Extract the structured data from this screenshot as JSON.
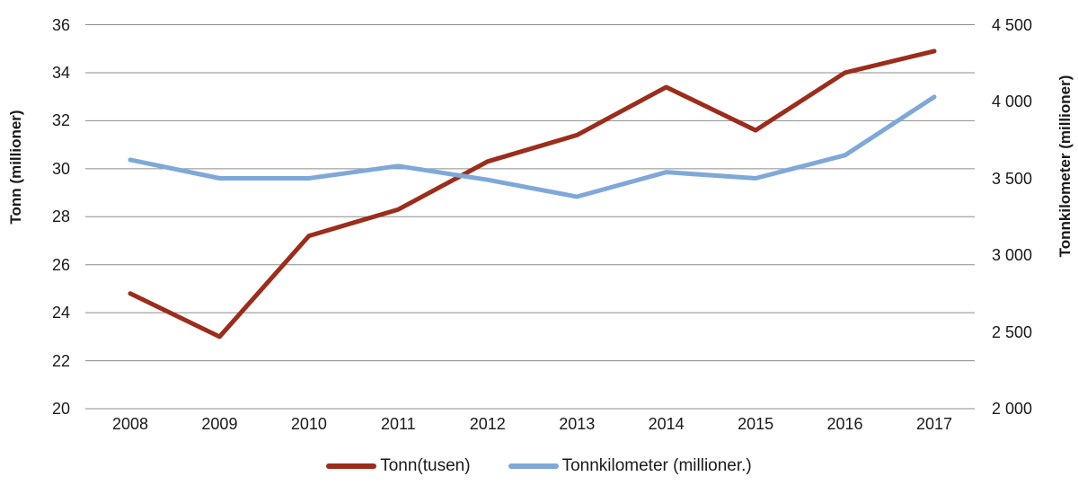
{
  "left_axis": {
    "title": "Tonn (millioner)"
  },
  "right_axis": {
    "title": "Tonnkilometer (millioner)"
  },
  "legend": {
    "items": [
      {
        "label": "Tonn(tusen)",
        "color": "#9B2D1C"
      },
      {
        "label": "Tonnkilometer (millioner.)",
        "color": "#7FA8D8"
      }
    ]
  },
  "colors": {
    "grid": "#8c8c8c",
    "tonn_line": "#9B2D1C",
    "tonnkilometer_line": "#7FA8D8",
    "text": "#1a1a1a",
    "background": "#ffffff"
  },
  "chart_data": {
    "type": "line",
    "categories": [
      "2008",
      "2009",
      "2010",
      "2011",
      "2012",
      "2013",
      "2014",
      "2015",
      "2016",
      "2017"
    ],
    "series": [
      {
        "name": "Tonn(tusen)",
        "axis": "left",
        "color": "#9B2D1C",
        "values": [
          24.8,
          23.0,
          27.2,
          28.3,
          30.3,
          31.4,
          33.4,
          31.6,
          34.0,
          34.9
        ]
      },
      {
        "name": "Tonnkilometer (millioner.)",
        "axis": "right",
        "color": "#7FA8D8",
        "values": [
          3620,
          3500,
          3500,
          3580,
          3490,
          3380,
          3540,
          3500,
          3650,
          4030
        ]
      }
    ],
    "left_axis": {
      "label": "Tonn (millioner)",
      "range": [
        20,
        36
      ],
      "tick_step": 2,
      "tick_labels": [
        "36",
        "34",
        "32",
        "30",
        "28",
        "26",
        "24",
        "22",
        "20"
      ]
    },
    "right_axis": {
      "label": "Tonnkilometer (millioner)",
      "range": [
        2000,
        4500
      ],
      "tick_step": 500,
      "tick_labels": [
        "4 500",
        "4 000",
        "3 500",
        "3 000",
        "2 500",
        "2 000"
      ]
    },
    "grid": true,
    "legend_position": "bottom"
  }
}
